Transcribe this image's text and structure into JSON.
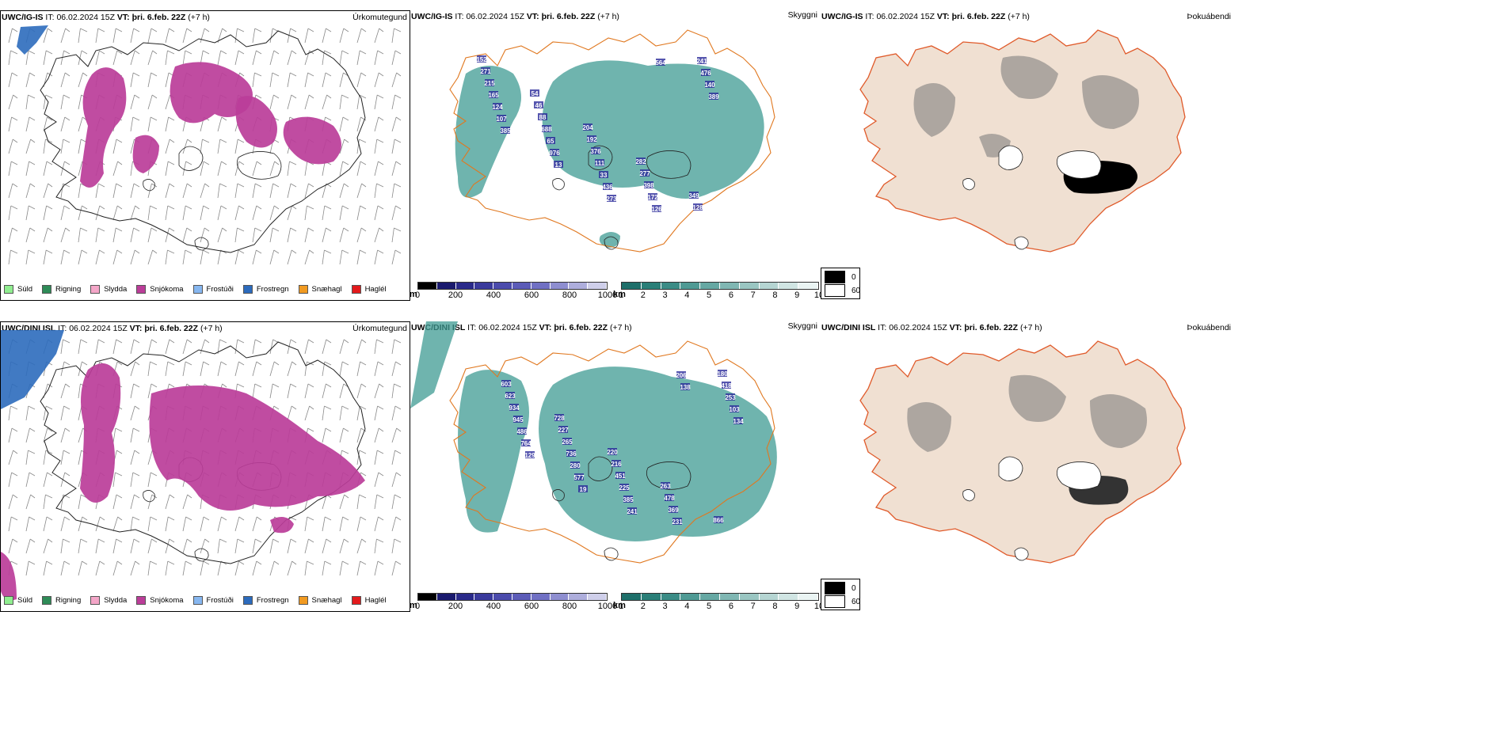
{
  "rows": [
    {
      "model": "UWC/IG-IS",
      "it_label": "IT:",
      "it_value": "06.02.2024 15Z",
      "vt_label": "VT:",
      "vt_value": "þri. 6.feb. 22Z",
      "lead": "(+7 h)",
      "p1_tag": "Úrkomutegund",
      "p2_tag": "Skyggni",
      "p3_tag": "Þokuábendi",
      "labels": [
        "152",
        "54",
        "204",
        "282",
        "349",
        "271",
        "46",
        "192",
        "277",
        "128",
        "215",
        "88",
        "376",
        "398",
        "241",
        "165",
        "688",
        "111",
        "172",
        "476",
        "124",
        "65",
        "33",
        "126",
        "140",
        "107",
        "976",
        "436",
        "564",
        "389",
        "385",
        "13",
        "273"
      ]
    },
    {
      "model": "UWC/DINI ISL",
      "it_label": "IT:",
      "it_value": "06.02.2024 15Z",
      "vt_label": "VT:",
      "vt_value": "þri. 6.feb. 22Z",
      "lead": "(+7 h)",
      "p1_tag": "Úrkomutegund",
      "p2_tag": "Skyggni",
      "p3_tag": "Þokuábendi",
      "labels": [
        "603",
        "728",
        "220",
        "263",
        "866",
        "623",
        "227",
        "216",
        "478",
        "180",
        "934",
        "265",
        "451",
        "369",
        "418",
        "945",
        "736",
        "225",
        "231",
        "253",
        "486",
        "280",
        "385",
        "206",
        "103",
        "764",
        "577",
        "241",
        "138",
        "134",
        "129",
        "19"
      ]
    }
  ],
  "legend": [
    {
      "label": "Súld",
      "color": "#90ee90"
    },
    {
      "label": "Rigning",
      "color": "#2e8b57"
    },
    {
      "label": "Slydda",
      "color": "#f4a6c8"
    },
    {
      "label": "Snjókoma",
      "color": "#bb3d99"
    },
    {
      "label": "Frostúði",
      "color": "#87b7f0"
    },
    {
      "label": "Frostregn",
      "color": "#2c6bbd"
    },
    {
      "label": "Snæhagl",
      "color": "#f19a21"
    },
    {
      "label": "Haglél",
      "color": "#e31a1c"
    }
  ],
  "colorbar_m": {
    "unit": "m",
    "ticks": [
      "0",
      "200",
      "400",
      "600",
      "800",
      "1000"
    ],
    "colors": [
      "#000000",
      "#1a1a6e",
      "#2a2a8a",
      "#3a3a9c",
      "#4b4bac",
      "#5c5cb8",
      "#7070c4",
      "#8e8ed0",
      "#aeaedc",
      "#cfcfea"
    ]
  },
  "colorbar_km": {
    "unit": "km",
    "ticks": [
      "1",
      "2",
      "3",
      "4",
      "5",
      "6",
      "7",
      "8",
      "9",
      "10"
    ],
    "colors": [
      "#1e6f6a",
      "#2a7f78",
      "#3b8c86",
      "#4f9a94",
      "#66a8a3",
      "#80b7b3",
      "#9ac6c2",
      "#b5d5d2",
      "#d0e5e3",
      "#eaf4f3"
    ]
  },
  "fog_legend": [
    {
      "label": "0",
      "color": "#000000"
    },
    {
      "label": "60",
      "color": "#ffffff"
    }
  ]
}
